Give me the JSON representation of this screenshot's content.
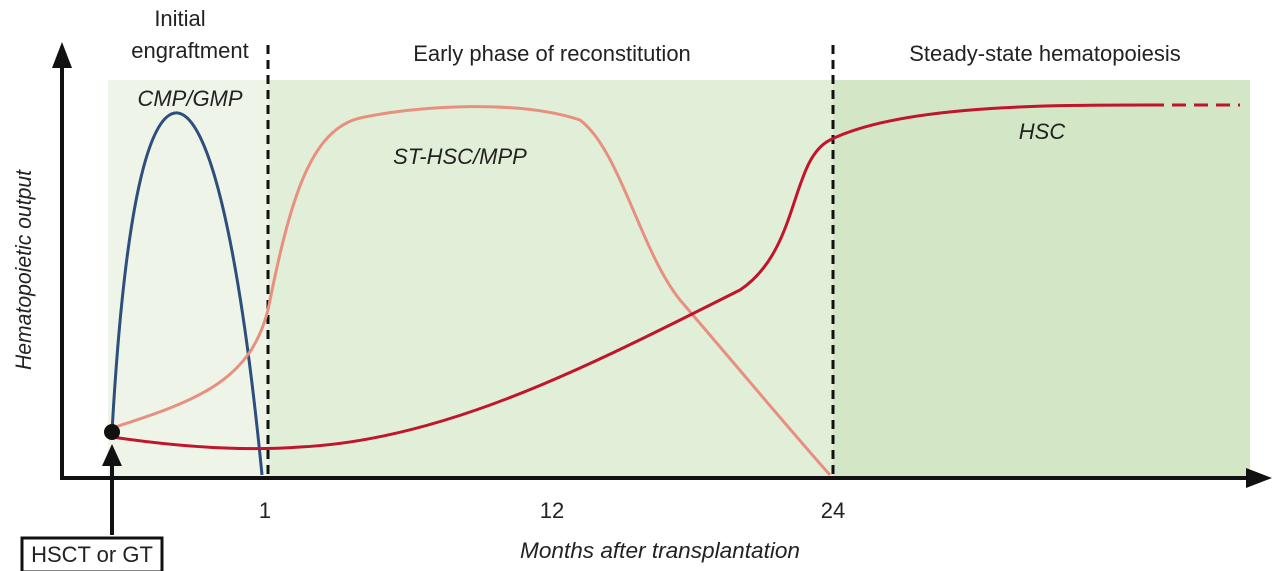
{
  "phases": [
    "Initial engraftment",
    "Early phase of reconstitution",
    "Steady-state hematopoiesis"
  ],
  "phase_lines": [
    [
      "Initial",
      "engraftment"
    ]
  ],
  "curves": [
    "CMP/GMP",
    "ST-HSC/MPP",
    "HSC"
  ],
  "y_axis_label": "Hematopoietic output",
  "x_axis_label": "Months after transplantation",
  "x_tick_labels": [
    "1",
    "12",
    "24"
  ],
  "start_label": "HSCT or GT"
}
